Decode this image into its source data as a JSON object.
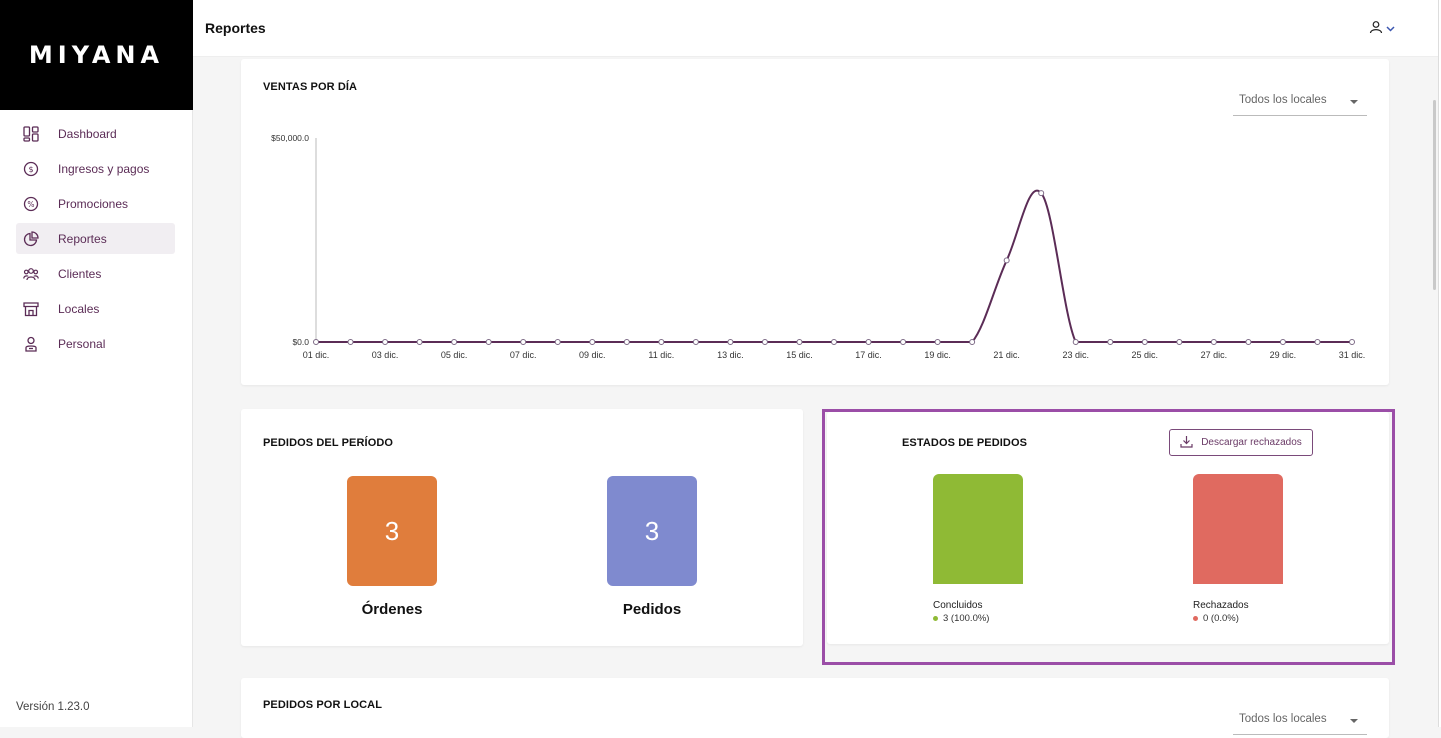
{
  "brand": {
    "logo_text": "MIYANA"
  },
  "sidebar": {
    "items": [
      {
        "label": "Dashboard",
        "icon": "dashboard-icon"
      },
      {
        "label": "Ingresos y pagos",
        "icon": "dollar-icon"
      },
      {
        "label": "Promociones",
        "icon": "percent-icon"
      },
      {
        "label": "Reportes",
        "icon": "pie-chart-icon",
        "active": true
      },
      {
        "label": "Clientes",
        "icon": "users-icon"
      },
      {
        "label": "Locales",
        "icon": "store-icon"
      },
      {
        "label": "Personal",
        "icon": "staff-icon"
      }
    ],
    "version": "Versión 1.23.0"
  },
  "header": {
    "title": "Reportes",
    "user_icon": "user-icon"
  },
  "ventas": {
    "title": "VENTAS POR DÍA",
    "select_value": "Todos los locales"
  },
  "chart_data": {
    "type": "line",
    "title": "VENTAS POR DÍA",
    "x": [
      "01 dic.",
      "02 dic.",
      "03 dic.",
      "04 dic.",
      "05 dic.",
      "06 dic.",
      "07 dic.",
      "08 dic.",
      "09 dic.",
      "10 dic.",
      "11 dic.",
      "12 dic.",
      "13 dic.",
      "14 dic.",
      "15 dic.",
      "16 dic.",
      "17 dic.",
      "18 dic.",
      "19 dic.",
      "20 dic.",
      "21 dic.",
      "22 dic.",
      "23 dic.",
      "24 dic.",
      "25 dic.",
      "26 dic.",
      "27 dic.",
      "28 dic.",
      "29 dic.",
      "30 dic.",
      "31 dic."
    ],
    "x_tick_labels": [
      "01 dic.",
      "03 dic.",
      "05 dic.",
      "07 dic.",
      "09 dic.",
      "11 dic.",
      "13 dic.",
      "15 dic.",
      "17 dic.",
      "19 dic.",
      "21 dic.",
      "23 dic.",
      "25 dic.",
      "27 dic.",
      "29 dic.",
      "31 dic."
    ],
    "series": [
      {
        "values": [
          0,
          0,
          0,
          0,
          0,
          0,
          0,
          0,
          0,
          0,
          0,
          0,
          0,
          0,
          0,
          0,
          0,
          0,
          0,
          0,
          20000,
          36500,
          0,
          0,
          0,
          0,
          0,
          0,
          0,
          0,
          0
        ]
      }
    ],
    "y_tick_labels": [
      "$0.0",
      "$50,000.0"
    ],
    "ylim": [
      0,
      50000
    ],
    "color": "#5b2c56",
    "grid": false
  },
  "pedidos_periodo": {
    "title": "PEDIDOS DEL PERÍODO",
    "tiles": [
      {
        "value": "3",
        "caption": "Órdenes",
        "color": "#e07d3c"
      },
      {
        "value": "3",
        "caption": "Pedidos",
        "color": "#7f8acf"
      }
    ]
  },
  "estados": {
    "title": "ESTADOS DE PEDIDOS",
    "download_label": "Descargar rechazados",
    "download_icon": "download-icon",
    "items": [
      {
        "name": "Concluidos",
        "value": "3 (100.0%)",
        "color": "#8fba35"
      },
      {
        "name": "Rechazados",
        "value": "0 (0.0%)",
        "color": "#e06a60"
      }
    ],
    "highlight_color": "#9b4ea7"
  },
  "por_local": {
    "title": "PEDIDOS POR LOCAL",
    "select_value": "Todos los locales"
  }
}
